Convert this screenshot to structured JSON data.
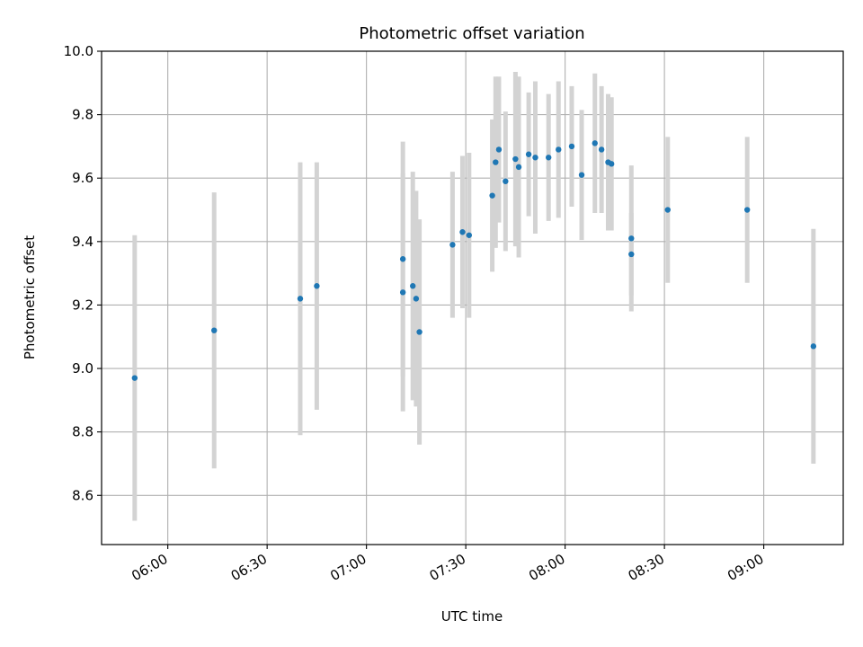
{
  "chart_data": {
    "type": "scatter",
    "title": "Photometric offset variation",
    "xlabel": "UTC time",
    "ylabel": "Photometric offset",
    "xlim": [
      "05:40",
      "09:24"
    ],
    "ylim": [
      8.445,
      10.0
    ],
    "grid": true,
    "marker_color": "#1f77b4",
    "errorbar_color": "#d3d3d3",
    "x_ticks": [
      "06:00",
      "06:30",
      "07:00",
      "07:30",
      "08:00",
      "08:30",
      "09:00"
    ],
    "y_ticks": [
      8.6,
      8.8,
      9.0,
      9.2,
      9.4,
      9.6,
      9.8,
      10.0
    ],
    "y_tick_labels": [
      "8.6",
      "8.8",
      "9.0",
      "9.2",
      "9.4",
      "9.6",
      "9.8",
      "10.0"
    ],
    "series": [
      {
        "points": [
          {
            "x": "05:50",
            "y": 8.97,
            "err": 0.45
          },
          {
            "x": "06:14",
            "y": 9.12,
            "err": 0.435
          },
          {
            "x": "06:40",
            "y": 9.22,
            "err": 0.43
          },
          {
            "x": "06:45",
            "y": 9.26,
            "err": 0.39
          },
          {
            "x": "07:11",
            "y": 9.345,
            "err": 0.37
          },
          {
            "x": "07:11",
            "y": 9.24,
            "err": 0.375
          },
          {
            "x": "07:14",
            "y": 9.26,
            "err": 0.36
          },
          {
            "x": "07:15",
            "y": 9.22,
            "err": 0.34
          },
          {
            "x": "07:16",
            "y": 9.115,
            "err": 0.355
          },
          {
            "x": "07:26",
            "y": 9.39,
            "err": 0.23
          },
          {
            "x": "07:29",
            "y": 9.43,
            "err": 0.24
          },
          {
            "x": "07:31",
            "y": 9.42,
            "err": 0.26
          },
          {
            "x": "07:38",
            "y": 9.545,
            "err": 0.24
          },
          {
            "x": "07:39",
            "y": 9.65,
            "err": 0.27
          },
          {
            "x": "07:40",
            "y": 9.69,
            "err": 0.23
          },
          {
            "x": "07:42",
            "y": 9.59,
            "err": 0.22
          },
          {
            "x": "07:45",
            "y": 9.66,
            "err": 0.275
          },
          {
            "x": "07:46",
            "y": 9.635,
            "err": 0.285
          },
          {
            "x": "07:49",
            "y": 9.675,
            "err": 0.195
          },
          {
            "x": "07:51",
            "y": 9.665,
            "err": 0.24
          },
          {
            "x": "07:55",
            "y": 9.665,
            "err": 0.2
          },
          {
            "x": "07:58",
            "y": 9.69,
            "err": 0.215
          },
          {
            "x": "08:02",
            "y": 9.7,
            "err": 0.19
          },
          {
            "x": "08:05",
            "y": 9.61,
            "err": 0.205
          },
          {
            "x": "08:09",
            "y": 9.71,
            "err": 0.22
          },
          {
            "x": "08:11",
            "y": 9.69,
            "err": 0.2
          },
          {
            "x": "08:13",
            "y": 9.65,
            "err": 0.215
          },
          {
            "x": "08:14",
            "y": 9.645,
            "err": 0.21
          },
          {
            "x": "08:20",
            "y": 9.36,
            "err": 0.13
          },
          {
            "x": "08:20",
            "y": 9.41,
            "err": 0.23
          },
          {
            "x": "08:31",
            "y": 9.5,
            "err": 0.23
          },
          {
            "x": "08:55",
            "y": 9.5,
            "err": 0.23
          },
          {
            "x": "09:15",
            "y": 9.07,
            "err": 0.37
          }
        ]
      }
    ]
  }
}
